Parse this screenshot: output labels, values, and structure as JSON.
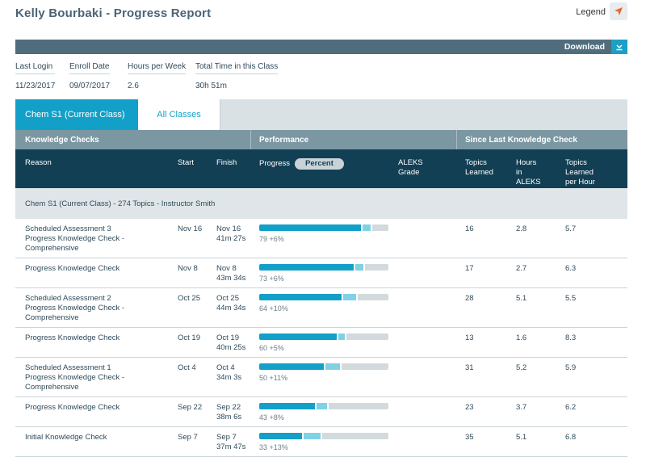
{
  "header": {
    "title": "Kelly Bourbaki - Progress Report",
    "legend_label": "Legend",
    "legend_icon": "navigation-arrow-icon"
  },
  "toolbar": {
    "download_label": "Download",
    "download_icon": "download-icon"
  },
  "summary": [
    {
      "label": "Last Login",
      "value": "11/23/2017"
    },
    {
      "label": "Enroll Date",
      "value": "09/07/2017"
    },
    {
      "label": "Hours per Week",
      "value": "2.6"
    },
    {
      "label": "Total Time in this Class",
      "value": "30h 51m"
    }
  ],
  "tabs": [
    {
      "label": "Chem S1 (Current Class)",
      "active": true
    },
    {
      "label": "All Classes",
      "active": false
    }
  ],
  "sections": {
    "knowledge_checks": "Knowledge Checks",
    "performance": "Performance",
    "since_last": "Since Last Knowledge Check"
  },
  "columns": {
    "reason": "Reason",
    "start": "Start",
    "finish": "Finish",
    "progress": "Progress",
    "percent": "Percent",
    "aleks_grade": [
      "ALEKS",
      "Grade"
    ],
    "topics_learned": [
      "Topics",
      "Learned"
    ],
    "hours_in_aleks": [
      "Hours",
      "in",
      "ALEKS"
    ],
    "topics_per_hour": [
      "Topics",
      "Learned",
      "per Hour"
    ]
  },
  "group_label": "Chem S1 (Current Class) - 274 Topics - Instructor Smith",
  "colors": {
    "accent": "#12a0c8",
    "gain": "#7fd1e3",
    "header_dark": "#133f54",
    "header_mid": "#7b97a2"
  },
  "rows": [
    {
      "reason": [
        "Scheduled Assessment 3",
        "Progress Knowledge Check -",
        "Comprehensive"
      ],
      "start": "Nov 16",
      "finish_date": "Nov 16",
      "finish_time": "41m 27s",
      "base": 79,
      "gain": 6,
      "percent_text": "79 +6%",
      "topics": "16",
      "hours": "2.8",
      "rate": "5.7"
    },
    {
      "reason": [
        "Progress Knowledge Check"
      ],
      "start": "Nov 8",
      "finish_date": "Nov 8",
      "finish_time": "43m 34s",
      "base": 73,
      "gain": 6,
      "percent_text": "73 +6%",
      "topics": "17",
      "hours": "2.7",
      "rate": "6.3"
    },
    {
      "reason": [
        "Scheduled Assessment 2",
        "Progress Knowledge Check -",
        "Comprehensive"
      ],
      "start": "Oct 25",
      "finish_date": "Oct 25",
      "finish_time": "44m 34s",
      "base": 64,
      "gain": 10,
      "percent_text": "64 +10%",
      "topics": "28",
      "hours": "5.1",
      "rate": "5.5"
    },
    {
      "reason": [
        "Progress Knowledge Check"
      ],
      "start": "Oct 19",
      "finish_date": "Oct 19",
      "finish_time": "40m 25s",
      "base": 60,
      "gain": 5,
      "percent_text": "60 +5%",
      "topics": "13",
      "hours": "1.6",
      "rate": "8.3"
    },
    {
      "reason": [
        "Scheduled Assessment 1",
        "Progress Knowledge Check -",
        "Comprehensive"
      ],
      "start": "Oct 4",
      "finish_date": "Oct 4",
      "finish_time": "34m 3s",
      "base": 50,
      "gain": 11,
      "percent_text": "50 +11%",
      "topics": "31",
      "hours": "5.2",
      "rate": "5.9"
    },
    {
      "reason": [
        "Progress Knowledge Check"
      ],
      "start": "Sep 22",
      "finish_date": "Sep 22",
      "finish_time": "38m 6s",
      "base": 43,
      "gain": 8,
      "percent_text": "43 +8%",
      "topics": "23",
      "hours": "3.7",
      "rate": "6.2"
    },
    {
      "reason": [
        "Initial Knowledge Check"
      ],
      "start": "Sep 7",
      "finish_date": "Sep 7",
      "finish_time": "37m 47s",
      "base": 33,
      "gain": 13,
      "percent_text": "33 +13%",
      "topics": "35",
      "hours": "5.1",
      "rate": "6.8"
    }
  ]
}
